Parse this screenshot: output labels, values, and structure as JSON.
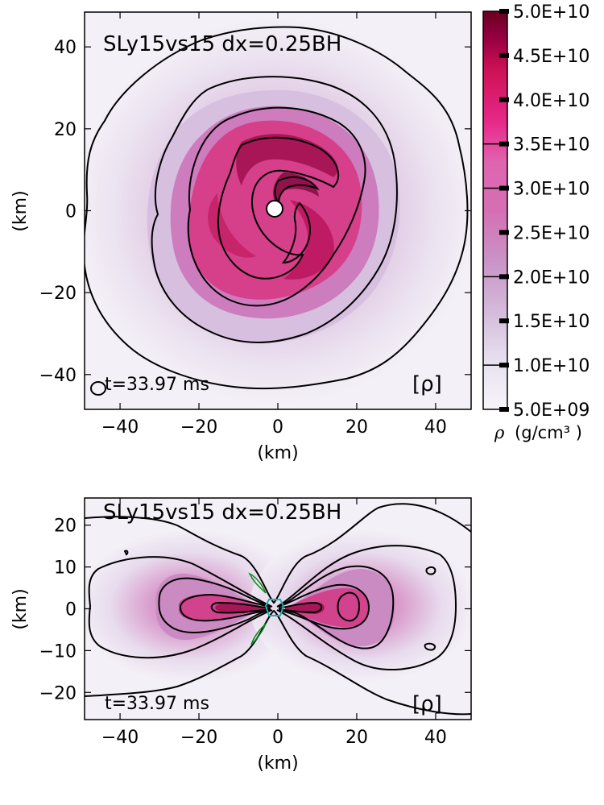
{
  "colors": {
    "cmap": [
      "#f7f4f9",
      "#e3d6ea",
      "#d4b9da",
      "#c994c7",
      "#df65b0",
      "#e7298a",
      "#ce1256",
      "#980043",
      "#67001f"
    ],
    "disk_outer": "#d8c5e1",
    "disk_mid": "#c78ac0",
    "disk_core": "#d33f87",
    "disk_dark": "#8e0d45",
    "contour": "#000000",
    "horizon_green": "#0a8a1a",
    "horizon_teal": "#20b2aa"
  },
  "chart_data": [
    {
      "type": "heatmap",
      "view": "equatorial",
      "title": "SLy15vs15 dx=0.25BH",
      "time_label": "t=33.97 ms",
      "quantity_label": "[ρ]",
      "quantity_symbol": "ρ",
      "xlabel": "(km)",
      "ylabel": "(km)",
      "xlim": [
        -49,
        49
      ],
      "ylim": [
        -48.5,
        48.5
      ],
      "xticks": [
        -40,
        -20,
        0,
        20,
        40
      ],
      "yticks": [
        -40,
        -20,
        0,
        20,
        40
      ],
      "xtick_labels": [
        "−40",
        "−20",
        "0",
        "20",
        "40"
      ],
      "ytick_labels": [
        "−40",
        "−20",
        "0",
        "20",
        "40"
      ],
      "black_hole_radius_km": 2,
      "contours": [
        {
          "level": 10000000000.0,
          "mean_radius_km": 43
        },
        {
          "level": 20000000000.0,
          "mean_radius_km": 30
        },
        {
          "level": 30000000000.0,
          "mean_radius_km": 22
        },
        {
          "level": 35000000000.0,
          "mean_radius_km": 16
        }
      ]
    },
    {
      "type": "heatmap",
      "view": "meridional",
      "title": "SLy15vs15 dx=0.25BH",
      "time_label": "t=33.97 ms",
      "quantity_label": "[ρ]",
      "xlabel": "(km)",
      "ylabel": "(km)",
      "xlim": [
        -49,
        49
      ],
      "ylim": [
        -26.5,
        26.5
      ],
      "xticks": [
        -40,
        -20,
        0,
        20,
        40
      ],
      "yticks": [
        -20,
        -10,
        0,
        10,
        20
      ],
      "xtick_labels": [
        "−40",
        "−20",
        "0",
        "20",
        "40"
      ],
      "ytick_labels": [
        "−20",
        "−10",
        "0",
        "10",
        "20"
      ]
    }
  ],
  "colorbar": {
    "min": 5000000000.0,
    "max": 50000000000.0,
    "tick_values": [
      5000000000.0,
      10000000000.0,
      15000000000.0,
      20000000000.0,
      25000000000.0,
      30000000000.0,
      35000000000.0,
      40000000000.0,
      45000000000.0,
      50000000000.0
    ],
    "tick_labels": [
      "5.0E+09",
      "1.0E+10",
      "1.5E+10",
      "2.0E+10",
      "2.5E+10",
      "3.0E+10",
      "3.5E+10",
      "4.0E+10",
      "4.5E+10",
      "5.0E+10"
    ],
    "contour_values": [
      10000000000.0,
      20000000000.0,
      30000000000.0,
      35000000000.0
    ],
    "label_symbol": "ρ",
    "label_units": "(g/cm³ )"
  }
}
